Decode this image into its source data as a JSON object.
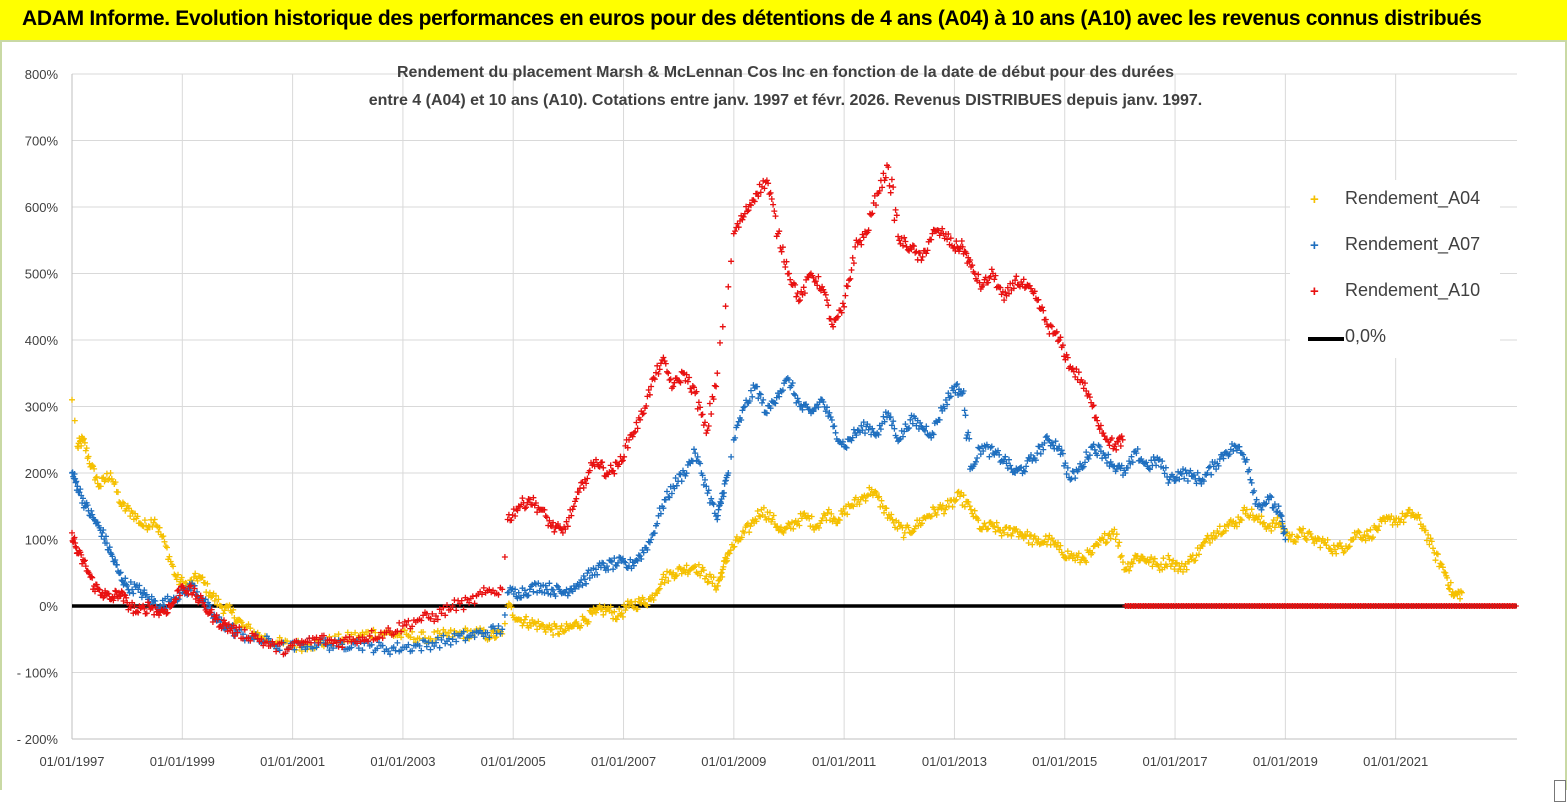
{
  "banner": {
    "title": "ADAM Informe. Evolution historique des performances en euros pour des détentions de 4 ans (A04) à 10 ans (A10) avec les revenus connus distribués"
  },
  "chart_data": {
    "type": "scatter",
    "title_line1": "Rendement du placement Marsh & McLennan Cos Inc en fonction de la date de début pour des durées",
    "title_line2": "entre 4 (A04) et 10 ans (A10).  Cotations entre janv. 1997 et févr. 2026. Revenus DISTRIBUES depuis janv. 1997.",
    "xlabel": "",
    "ylabel": "",
    "xlim": [
      1997.0,
      2023.2
    ],
    "ylim": [
      -200,
      800
    ],
    "y_ticks": [
      -200,
      -100,
      0,
      100,
      200,
      300,
      400,
      500,
      600,
      700,
      800
    ],
    "y_tick_labels": [
      "- 200%",
      "- 100%",
      "0%",
      "100%",
      "200%",
      "300%",
      "400%",
      "500%",
      "600%",
      "700%",
      "800%"
    ],
    "x_ticks": [
      1997,
      1999,
      2001,
      2003,
      2005,
      2007,
      2009,
      2011,
      2013,
      2015,
      2017,
      2019,
      2021
    ],
    "x_tick_labels": [
      "01/01/1997",
      "01/01/1999",
      "01/01/2001",
      "01/01/2003",
      "01/01/2005",
      "01/01/2007",
      "01/01/2009",
      "01/01/2011",
      "01/01/2013",
      "01/01/2015",
      "01/01/2017",
      "01/01/2019",
      "01/01/2021"
    ],
    "grid": true,
    "legend_position": "top-right",
    "series": [
      {
        "name": "Rendement_A04",
        "color": "#f5c000",
        "x": [
          1997.0,
          1997.1,
          1997.2,
          1997.35,
          1997.5,
          1997.7,
          1997.9,
          1998.1,
          1998.3,
          1998.5,
          1998.7,
          1998.9,
          1999.1,
          1999.3,
          1999.5,
          1999.7,
          1999.9,
          2000.1,
          2000.4,
          2000.7,
          2001.0,
          2001.3,
          2001.6,
          2001.9,
          2002.2,
          2002.5,
          2002.8,
          2003.1,
          2003.4,
          2003.7,
          2004.0,
          2004.3,
          2004.6,
          2004.8,
          2004.9,
          2005.1,
          2005.3,
          2005.5,
          2005.7,
          2005.9,
          2006.1,
          2006.3,
          2006.5,
          2006.7,
          2006.9,
          2007.1,
          2007.3,
          2007.5,
          2007.7,
          2007.9,
          2008.1,
          2008.3,
          2008.5,
          2008.7,
          2008.8,
          2008.9,
          2009.1,
          2009.3,
          2009.5,
          2009.7,
          2009.9,
          2010.1,
          2010.3,
          2010.5,
          2010.7,
          2010.9,
          2011.1,
          2011.3,
          2011.5,
          2011.7,
          2011.9,
          2012.1,
          2012.3,
          2012.5,
          2012.7,
          2012.9,
          2013.1,
          2013.3,
          2013.5,
          2013.7,
          2013.9,
          2014.1,
          2014.3,
          2014.5,
          2014.7,
          2014.9,
          2015.1,
          2015.3,
          2015.5,
          2015.7,
          2015.9,
          2016.1,
          2016.3,
          2016.5,
          2016.7,
          2016.9,
          2017.1,
          2017.3,
          2017.5,
          2017.7,
          2017.9,
          2018.1,
          2018.3,
          2018.5,
          2018.7,
          2018.9,
          2019.1,
          2019.3,
          2019.5,
          2019.7,
          2019.9,
          2020.1,
          2020.3,
          2020.5,
          2020.7,
          2020.9,
          2021.1,
          2021.3,
          2021.5,
          2021.7,
          2021.9,
          2022.05,
          2022.2
        ],
        "values": [
          310,
          240,
          250,
          210,
          180,
          200,
          150,
          140,
          120,
          130,
          90,
          40,
          30,
          45,
          20,
          0,
          -10,
          -30,
          -45,
          -55,
          -60,
          -58,
          -55,
          -50,
          -45,
          -40,
          -42,
          -45,
          -48,
          -45,
          -42,
          -40,
          -45,
          -42,
          0,
          -20,
          -25,
          -30,
          -35,
          -38,
          -30,
          -20,
          -10,
          -5,
          -15,
          0,
          5,
          10,
          40,
          50,
          55,
          60,
          45,
          30,
          55,
          80,
          100,
          120,
          145,
          130,
          110,
          125,
          135,
          120,
          140,
          130,
          150,
          160,
          175,
          150,
          125,
          110,
          120,
          135,
          145,
          150,
          165,
          145,
          115,
          120,
          110,
          115,
          105,
          95,
          100,
          85,
          75,
          70,
          80,
          100,
          115,
          55,
          75,
          70,
          60,
          70,
          55,
          70,
          90,
          110,
          120,
          125,
          145,
          130,
          120,
          125,
          100,
          110,
          100,
          95,
          85,
          90,
          110,
          105,
          120,
          130,
          130,
          140,
          120,
          80,
          50,
          15,
          20
        ]
      },
      {
        "name": "Rendement_A07",
        "color": "#1f6fbf",
        "x": [
          1997.0,
          1997.1,
          1997.25,
          1997.4,
          1997.55,
          1997.7,
          1997.85,
          1998.0,
          1998.2,
          1998.4,
          1998.6,
          1998.8,
          1999.0,
          1999.2,
          1999.4,
          1999.6,
          1999.8,
          2000.0,
          2000.3,
          2000.6,
          2000.9,
          2001.2,
          2001.5,
          2001.8,
          2002.1,
          2002.4,
          2002.7,
          2003.0,
          2003.3,
          2003.6,
          2003.9,
          2004.2,
          2004.5,
          2004.8,
          2004.9,
          2005.1,
          2005.3,
          2005.5,
          2005.7,
          2005.9,
          2006.1,
          2006.3,
          2006.5,
          2006.7,
          2006.9,
          2007.1,
          2007.3,
          2007.5,
          2007.7,
          2007.9,
          2008.1,
          2008.3,
          2008.5,
          2008.7,
          2008.8,
          2008.9,
          2009.0,
          2009.2,
          2009.4,
          2009.6,
          2009.8,
          2010.0,
          2010.2,
          2010.4,
          2010.6,
          2010.8,
          2011.0,
          2011.2,
          2011.4,
          2011.6,
          2011.8,
          2012.0,
          2012.2,
          2012.4,
          2012.6,
          2012.8,
          2013.0,
          2013.15,
          2013.3,
          2013.5,
          2013.7,
          2013.9,
          2014.1,
          2014.3,
          2014.5,
          2014.7,
          2014.9,
          2015.1,
          2015.3,
          2015.5,
          2015.7,
          2015.9,
          2016.1,
          2016.3,
          2016.5,
          2016.7,
          2016.9,
          2017.1,
          2017.3,
          2017.5,
          2017.7,
          2017.9,
          2018.1,
          2018.3,
          2018.5,
          2018.7,
          2018.9,
          2019.0
        ],
        "values": [
          200,
          180,
          150,
          130,
          110,
          80,
          50,
          30,
          25,
          10,
          0,
          10,
          20,
          30,
          5,
          -20,
          -30,
          -40,
          -50,
          -55,
          -65,
          -58,
          -55,
          -60,
          -55,
          -60,
          -65,
          -62,
          -60,
          -55,
          -50,
          -45,
          -40,
          -35,
          20,
          20,
          25,
          30,
          25,
          20,
          30,
          40,
          55,
          60,
          65,
          60,
          75,
          100,
          150,
          180,
          200,
          230,
          180,
          130,
          170,
          200,
          250,
          300,
          330,
          290,
          320,
          340,
          300,
          290,
          310,
          270,
          240,
          260,
          270,
          260,
          290,
          250,
          280,
          270,
          260,
          300,
          330,
          320,
          210,
          240,
          230,
          220,
          200,
          210,
          230,
          250,
          240,
          190,
          210,
          240,
          230,
          210,
          200,
          230,
          210,
          220,
          190,
          200,
          195,
          190,
          210,
          230,
          240,
          220,
          150,
          160,
          140,
          100
        ]
      },
      {
        "name": "Rendement_A10",
        "color": "#e81010",
        "x": [
          1997.0,
          1997.1,
          1997.25,
          1997.4,
          1997.55,
          1997.7,
          1997.85,
          1998.0,
          1998.2,
          1998.4,
          1998.6,
          1998.8,
          1999.0,
          1999.2,
          1999.4,
          1999.6,
          1999.8,
          2000.0,
          2000.3,
          2000.6,
          2000.9,
          2001.2,
          2001.5,
          2001.8,
          2002.1,
          2002.4,
          2002.7,
          2003.0,
          2003.3,
          2003.6,
          2003.9,
          2004.2,
          2004.5,
          2004.8,
          2004.9,
          2005.1,
          2005.3,
          2005.5,
          2005.7,
          2005.9,
          2006.1,
          2006.3,
          2006.5,
          2006.7,
          2006.9,
          2007.1,
          2007.3,
          2007.5,
          2007.7,
          2007.9,
          2008.1,
          2008.3,
          2008.5,
          2008.7,
          2008.8,
          2008.9,
          2009.0,
          2009.2,
          2009.4,
          2009.6,
          2009.8,
          2010.0,
          2010.2,
          2010.4,
          2010.6,
          2010.8,
          2011.0,
          2011.2,
          2011.4,
          2011.6,
          2011.8,
          2012.0,
          2012.2,
          2012.4,
          2012.6,
          2012.8,
          2013.0,
          2013.15,
          2013.3,
          2013.5,
          2013.7,
          2013.9,
          2014.1,
          2014.3,
          2014.5,
          2014.7,
          2014.9,
          2015.1,
          2015.3,
          2015.5,
          2015.7,
          2015.9,
          2016.05
        ],
        "values": [
          110,
          80,
          60,
          30,
          20,
          10,
          20,
          5,
          -10,
          0,
          -10,
          0,
          30,
          20,
          0,
          -20,
          -30,
          -40,
          -45,
          -60,
          -65,
          -55,
          -50,
          -55,
          -50,
          -45,
          -40,
          -30,
          -20,
          -15,
          0,
          5,
          20,
          25,
          130,
          150,
          160,
          145,
          120,
          110,
          150,
          190,
          220,
          200,
          210,
          250,
          280,
          330,
          370,
          330,
          350,
          320,
          260,
          350,
          420,
          480,
          560,
          590,
          620,
          640,
          560,
          500,
          460,
          500,
          480,
          420,
          450,
          540,
          560,
          620,
          660,
          550,
          540,
          520,
          560,
          560,
          540,
          540,
          510,
          480,
          500,
          460,
          490,
          480,
          460,
          420,
          400,
          360,
          340,
          300,
          260,
          240,
          250
        ],
        "flat_tail_x": [
          2016.1,
          2023.2
        ],
        "flat_tail_value": 0
      }
    ],
    "reference_line": {
      "name": "0,0%",
      "value": 0,
      "color": "#000000"
    }
  }
}
